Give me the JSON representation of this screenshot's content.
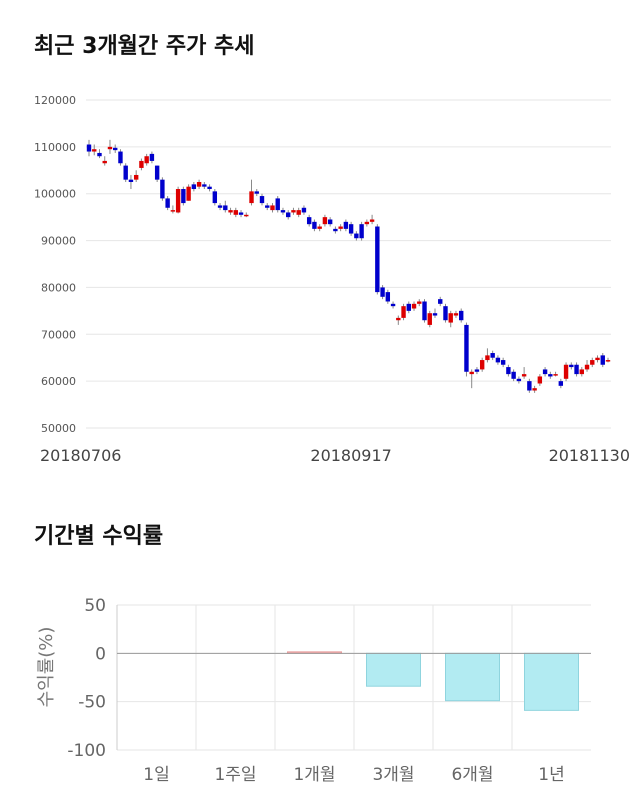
{
  "titles": {
    "trend": "최근 3개월간 주가 추세",
    "returns": "기간별 수익률"
  },
  "colors": {
    "up": "#dd0000",
    "down": "#0000cc",
    "positive_bar": "#f4b6b6",
    "negative_bar": "#b2ebf2",
    "grid": "#e6e6e6"
  },
  "chart_data": [
    {
      "type": "candlestick",
      "title": "최근 3개월간 주가 추세",
      "y_ticks": [
        "120000",
        "110000",
        "100000",
        "90000",
        "80000",
        "70000",
        "60000",
        "50000"
      ],
      "ylim": [
        50000,
        120000
      ],
      "x_tick_labels": [
        "20180706",
        "20180917",
        "20181130"
      ],
      "x_tick_index": [
        0,
        50,
        100
      ],
      "grid": true,
      "candles": [
        [
          110500,
          109000,
          111500,
          108000
        ],
        [
          109000,
          109500,
          110500,
          108200
        ],
        [
          108700,
          108000,
          109500,
          107600
        ],
        [
          106500,
          107000,
          108000,
          106000
        ],
        [
          109500,
          110000,
          111500,
          108500
        ],
        [
          109800,
          109300,
          110500,
          108700
        ],
        [
          109000,
          106500,
          109500,
          106000
        ],
        [
          106000,
          103000,
          106500,
          102500
        ],
        [
          103000,
          102500,
          104000,
          101000
        ],
        [
          103000,
          104000,
          105000,
          102500
        ],
        [
          105500,
          107000,
          107500,
          105000
        ],
        [
          106500,
          108000,
          108500,
          106000
        ],
        [
          108500,
          107000,
          109000,
          106500
        ],
        [
          106000,
          103000,
          106000,
          102500
        ],
        [
          103000,
          99000,
          103500,
          98500
        ],
        [
          99000,
          97000,
          99500,
          96500
        ],
        [
          96500,
          96500,
          97500,
          95800
        ],
        [
          96000,
          101000,
          101500,
          95800
        ],
        [
          101000,
          98000,
          101500,
          97500
        ],
        [
          98500,
          101500,
          102000,
          98500
        ],
        [
          102000,
          101000,
          102500,
          100500
        ],
        [
          101500,
          102500,
          103000,
          101000
        ],
        [
          102000,
          101500,
          102500,
          101000
        ],
        [
          101500,
          101000,
          102000,
          100500
        ],
        [
          100500,
          98000,
          101000,
          97500
        ],
        [
          97500,
          97000,
          98000,
          96500
        ],
        [
          97500,
          96500,
          98500,
          96000
        ],
        [
          96000,
          96500,
          97000,
          95500
        ],
        [
          95500,
          96500,
          97000,
          95000
        ],
        [
          96000,
          95500,
          96500,
          95000
        ],
        [
          95500,
          95500,
          96000,
          95000
        ],
        [
          98000,
          100500,
          103000,
          97500
        ],
        [
          100500,
          100000,
          101000,
          99500
        ],
        [
          99500,
          98000,
          100000,
          97500
        ],
        [
          97500,
          97000,
          98000,
          96500
        ],
        [
          96500,
          97500,
          98000,
          96000
        ],
        [
          99000,
          96500,
          99500,
          96000
        ],
        [
          96500,
          96000,
          97000,
          95500
        ],
        [
          96000,
          95000,
          96500,
          94500
        ],
        [
          96000,
          96500,
          97000,
          95500
        ],
        [
          95500,
          96500,
          97000,
          95000
        ],
        [
          97000,
          96000,
          97500,
          95500
        ],
        [
          95000,
          93500,
          95500,
          93000
        ],
        [
          94000,
          92500,
          94500,
          92000
        ],
        [
          92500,
          93000,
          93500,
          92000
        ],
        [
          93500,
          95000,
          95500,
          93000
        ],
        [
          94500,
          93500,
          95000,
          93000
        ],
        [
          92500,
          92000,
          93000,
          91500
        ],
        [
          92500,
          93000,
          93500,
          92000
        ],
        [
          94000,
          92500,
          94500,
          92000
        ],
        [
          93500,
          91500,
          94000,
          91000
        ],
        [
          91500,
          90500,
          92000,
          90000
        ],
        [
          93500,
          90500,
          94000,
          90000
        ],
        [
          93500,
          94000,
          94500,
          93000
        ],
        [
          94000,
          94500,
          95500,
          93500
        ],
        [
          93000,
          79000,
          93500,
          78500
        ],
        [
          80000,
          78000,
          80500,
          77500
        ],
        [
          79000,
          77000,
          79500,
          76500
        ],
        [
          76500,
          76000,
          77000,
          75500
        ],
        [
          73000,
          73500,
          74000,
          72000
        ],
        [
          73500,
          76000,
          76500,
          73000
        ],
        [
          76500,
          75000,
          77000,
          74500
        ],
        [
          75500,
          76500,
          77000,
          75000
        ],
        [
          76500,
          77000,
          77500,
          76000
        ],
        [
          77000,
          73000,
          77500,
          72500
        ],
        [
          72000,
          74500,
          75000,
          71500
        ],
        [
          74500,
          74000,
          75500,
          73500
        ],
        [
          77500,
          76500,
          78000,
          76000
        ],
        [
          76000,
          73000,
          76500,
          72500
        ],
        [
          72500,
          74500,
          75000,
          71500
        ],
        [
          74000,
          74500,
          75000,
          73500
        ],
        [
          75000,
          73000,
          75500,
          72500
        ],
        [
          72000,
          62000,
          72500,
          61000
        ],
        [
          61500,
          62000,
          62500,
          58500
        ],
        [
          62500,
          62000,
          63000,
          61500
        ],
        [
          62500,
          64500,
          65000,
          62000
        ],
        [
          64500,
          65500,
          67000,
          64000
        ],
        [
          66000,
          65000,
          66500,
          64500
        ],
        [
          65000,
          64000,
          65500,
          63500
        ],
        [
          64500,
          63500,
          65000,
          63000
        ],
        [
          63000,
          61500,
          63500,
          61000
        ],
        [
          62000,
          60500,
          62500,
          60000
        ],
        [
          60500,
          60000,
          61000,
          59500
        ],
        [
          61000,
          61500,
          63000,
          60500
        ],
        [
          60000,
          58000,
          60500,
          57500
        ],
        [
          58000,
          58500,
          59000,
          57500
        ],
        [
          59500,
          61000,
          61500,
          59000
        ],
        [
          62500,
          61500,
          63000,
          61000
        ],
        [
          61500,
          61000,
          62000,
          60500
        ],
        [
          61500,
          61500,
          62000,
          61000
        ],
        [
          60000,
          59000,
          60500,
          58500
        ],
        [
          60500,
          63500,
          64000,
          60000
        ],
        [
          63500,
          63000,
          64000,
          62500
        ],
        [
          63500,
          61500,
          64000,
          61000
        ],
        [
          61500,
          62500,
          63000,
          61000
        ],
        [
          62500,
          63500,
          64500,
          62000
        ],
        [
          63500,
          64500,
          65000,
          63000
        ],
        [
          64500,
          65000,
          65500,
          64000
        ],
        [
          65500,
          63500,
          66000,
          63000
        ],
        [
          64500,
          64500,
          65000,
          64000
        ]
      ]
    },
    {
      "type": "bar",
      "title": "기간별 수익률",
      "categories": [
        "1일",
        "1주일",
        "1개월",
        "3개월",
        "6개월",
        "1년"
      ],
      "values": [
        0,
        0,
        1.5,
        -34,
        -49,
        -59
      ],
      "ylabel": "수익률(%)",
      "y_ticks": [
        "50",
        "0",
        "-50",
        "-100"
      ],
      "ylim": [
        -100,
        50
      ],
      "grid": true
    }
  ]
}
